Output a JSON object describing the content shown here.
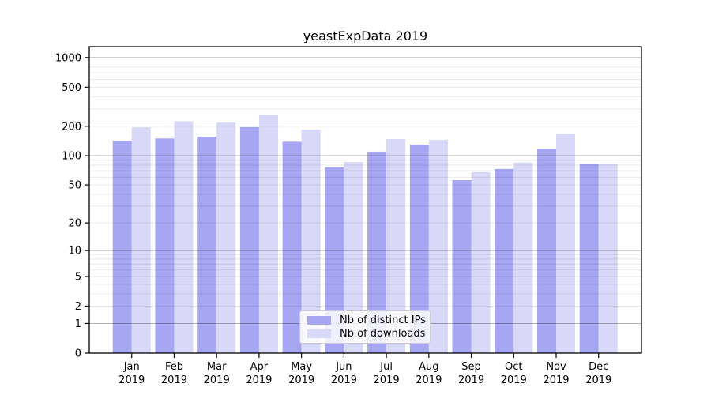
{
  "chart_data": {
    "type": "bar",
    "title": "yeastExpData 2019",
    "categories": [
      "Jan",
      "Feb",
      "Mar",
      "Apr",
      "May",
      "Jun",
      "Jul",
      "Aug",
      "Sep",
      "Oct",
      "Nov",
      "Dec"
    ],
    "category_year": "2019",
    "series": [
      {
        "name": "Nb of distinct IPs",
        "color": "#a6a6f2",
        "values": [
          142,
          150,
          156,
          196,
          139,
          76,
          110,
          130,
          56,
          73,
          118,
          82
        ]
      },
      {
        "name": "Nb of downloads",
        "color": "#d8d8f8",
        "values": [
          195,
          225,
          218,
          262,
          185,
          86,
          148,
          145,
          68,
          85,
          168,
          82
        ]
      }
    ],
    "yticks": [
      0,
      1,
      2,
      5,
      10,
      20,
      50,
      100,
      200,
      500,
      1000
    ],
    "yscale": "log1p",
    "ylim": [
      0,
      1300
    ],
    "xlabel": "",
    "ylabel": "",
    "grid": "horizontal major and minor log gridlines",
    "legend_position": "lower center inside plot",
    "colors": {
      "bar_ips": "#a6a6f2",
      "bar_downloads": "#d8d8f8",
      "major_grid": "#b3b3b3",
      "minor_grid": "#e8e8e8",
      "axis": "#000000",
      "background": "#ffffff"
    }
  }
}
